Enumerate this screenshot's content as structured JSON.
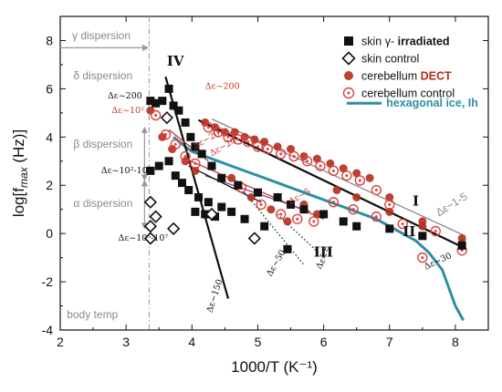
{
  "chart_data": {
    "type": "scatter",
    "xlabel": "1000/T (K⁻¹)",
    "xlim": [
      2,
      8.5
    ],
    "ylim": [
      -4,
      9
    ],
    "xticks": [
      2,
      3,
      4,
      5,
      6,
      7,
      8
    ],
    "yticks": [
      -4,
      -2,
      0,
      2,
      4,
      6,
      8
    ],
    "xtick_labels": [
      "2",
      "3",
      "4",
      "5",
      "6",
      "7",
      "8"
    ],
    "ytick_labels": [
      "-4",
      "-2",
      "0",
      "2",
      "4",
      "6",
      "8"
    ],
    "ylabel": {
      "main": "log[f",
      "sub": "max",
      "tail": " (Hz)]"
    },
    "legend_position": "top-right",
    "series": [
      {
        "name_prefix": "skin γ-",
        "name_bold": " irradiated",
        "marker": "filled-square",
        "color": "#111111",
        "points": [
          [
            3.37,
            5.5
          ],
          [
            3.45,
            5.4
          ],
          [
            3.55,
            5.5
          ],
          [
            3.65,
            6.0
          ],
          [
            3.72,
            5.3
          ],
          [
            3.8,
            5.1
          ],
          [
            3.9,
            4.6
          ],
          [
            3.98,
            4.0
          ],
          [
            4.05,
            3.6
          ],
          [
            4.15,
            3.3
          ],
          [
            4.3,
            2.8
          ],
          [
            4.45,
            2.3
          ],
          [
            4.7,
            2.0
          ],
          [
            5.0,
            1.7
          ],
          [
            5.3,
            1.5
          ],
          [
            5.5,
            1.2
          ],
          [
            5.7,
            1.0
          ],
          [
            6.0,
            0.8
          ],
          [
            6.3,
            0.5
          ],
          [
            6.5,
            0.3
          ],
          [
            7.0,
            0.2
          ],
          [
            7.5,
            -0.1
          ],
          [
            8.1,
            -0.5
          ],
          [
            3.37,
            2.6
          ],
          [
            3.5,
            2.8
          ],
          [
            3.65,
            3.0
          ],
          [
            3.75,
            2.4
          ],
          [
            3.85,
            2.1
          ],
          [
            3.95,
            1.8
          ],
          [
            4.1,
            1.5
          ],
          [
            4.25,
            1.3
          ],
          [
            4.45,
            1.1
          ],
          [
            4.6,
            0.9
          ],
          [
            4.8,
            0.6
          ],
          [
            5.1,
            0.3
          ],
          [
            5.45,
            -0.65
          ],
          [
            4.05,
            0.9
          ],
          [
            4.2,
            0.8
          ],
          [
            4.35,
            0.7
          ]
        ]
      },
      {
        "name": "skin control",
        "marker": "open-diamond",
        "color": "#111111",
        "points": [
          [
            3.37,
            1.3
          ],
          [
            3.37,
            0.3
          ],
          [
            3.37,
            -0.2
          ],
          [
            3.45,
            0.7
          ],
          [
            3.62,
            4.8
          ],
          [
            3.72,
            0.2
          ],
          [
            4.3,
            0.8
          ],
          [
            4.95,
            -0.2
          ]
        ]
      },
      {
        "name_prefix": "cerebellum",
        "name_bold": " DECT",
        "marker": "filled-circle",
        "color": "#b32d1a",
        "points": [
          [
            3.37,
            5.1
          ],
          [
            3.55,
            4.0
          ],
          [
            3.7,
            3.5
          ],
          [
            3.9,
            3.0
          ],
          [
            4.05,
            2.6
          ],
          [
            4.2,
            4.6
          ],
          [
            4.35,
            4.4
          ],
          [
            4.5,
            4.2
          ],
          [
            4.65,
            4.2
          ],
          [
            4.8,
            4.0
          ],
          [
            4.95,
            3.9
          ],
          [
            5.1,
            3.8
          ],
          [
            5.3,
            3.6
          ],
          [
            5.5,
            3.5
          ],
          [
            5.7,
            3.2
          ],
          [
            5.9,
            3.1
          ],
          [
            6.1,
            2.9
          ],
          [
            6.3,
            2.7
          ],
          [
            6.5,
            2.5
          ],
          [
            6.7,
            2.3
          ],
          [
            7.0,
            1.5
          ],
          [
            7.5,
            0.3
          ],
          [
            8.1,
            -0.4
          ],
          [
            4.6,
            2.3
          ],
          [
            4.9,
            1.5
          ],
          [
            5.2,
            1.0
          ],
          [
            5.45,
            0.5
          ],
          [
            5.7,
            1.2
          ],
          [
            5.9,
            0.8
          ],
          [
            6.2,
            1.8
          ],
          [
            6.5,
            1.5
          ],
          [
            7.0,
            0.9
          ],
          [
            7.5,
            0.5
          ],
          [
            8.1,
            -0.2
          ]
        ]
      },
      {
        "name": "cerebellum control",
        "marker": "open-circle-dot",
        "color": "#e04040",
        "points": [
          [
            3.45,
            4.9
          ],
          [
            3.6,
            4.1
          ],
          [
            3.75,
            3.7
          ],
          [
            3.9,
            3.2
          ],
          [
            4.05,
            2.9
          ],
          [
            4.25,
            4.4
          ],
          [
            4.4,
            4.2
          ],
          [
            4.55,
            4.0
          ],
          [
            4.7,
            3.9
          ],
          [
            4.85,
            3.8
          ],
          [
            5.0,
            3.6
          ],
          [
            5.15,
            3.5
          ],
          [
            5.35,
            3.3
          ],
          [
            5.55,
            3.2
          ],
          [
            5.75,
            3.0
          ],
          [
            5.95,
            2.8
          ],
          [
            6.15,
            2.6
          ],
          [
            6.35,
            2.4
          ],
          [
            6.55,
            2.2
          ],
          [
            6.8,
            1.8
          ],
          [
            7.0,
            1.2
          ],
          [
            7.5,
            -1.0
          ],
          [
            8.1,
            -0.7
          ],
          [
            4.75,
            1.9
          ],
          [
            5.05,
            1.2
          ],
          [
            5.35,
            0.8
          ],
          [
            5.6,
            0.6
          ],
          [
            5.85,
            0.5
          ],
          [
            6.15,
            1.3
          ],
          [
            6.45,
            1.0
          ],
          [
            6.8,
            0.7
          ],
          [
            7.2,
            0.4
          ],
          [
            7.7,
            0.1
          ]
        ]
      }
    ],
    "lines": [
      {
        "name": "hexagonal ice, Ih",
        "color": "#2d8fa3",
        "style": "solid",
        "points": [
          [
            3.72,
            4.0
          ],
          [
            3.9,
            3.6
          ],
          [
            4.0,
            3.4
          ],
          [
            4.2,
            3.2
          ],
          [
            4.4,
            3.0
          ],
          [
            4.6,
            2.8
          ],
          [
            4.8,
            2.6
          ],
          [
            5.0,
            2.4
          ],
          [
            5.2,
            2.2
          ],
          [
            5.4,
            2.0
          ],
          [
            5.6,
            1.8
          ],
          [
            5.8,
            1.6
          ],
          [
            6.0,
            1.4
          ],
          [
            6.2,
            1.2
          ],
          [
            6.4,
            1.0
          ],
          [
            6.6,
            0.8
          ],
          [
            6.8,
            0.6
          ],
          [
            7.0,
            0.3
          ],
          [
            7.2,
            0.0
          ],
          [
            7.4,
            -0.3
          ],
          [
            7.6,
            -0.8
          ],
          [
            7.8,
            -1.5
          ],
          [
            8.0,
            -3.0
          ],
          [
            8.12,
            -3.6
          ]
        ]
      },
      {
        "name": "fit I",
        "color": "#888888",
        "style": "solid",
        "points": [
          [
            4.3,
            4.75
          ],
          [
            8.15,
            -0.1
          ]
        ]
      },
      {
        "name": "fit II",
        "color": "#111111",
        "style": "solid-bold",
        "points": [
          [
            4.1,
            4.7
          ],
          [
            8.1,
            -0.55
          ]
        ]
      },
      {
        "name": "fit IV",
        "color": "#111111",
        "style": "solid-bold",
        "points": [
          [
            3.6,
            6.5
          ],
          [
            4.55,
            -2.7
          ]
        ]
      },
      {
        "name": "red fit upper",
        "color": "#c0392b",
        "style": "solid",
        "points": [
          [
            3.65,
            4.3
          ],
          [
            4.25,
            3.0
          ]
        ]
      },
      {
        "name": "red fit III",
        "color": "#c0392b",
        "style": "solid",
        "points": [
          [
            3.9,
            3.1
          ],
          [
            6.0,
            0.6
          ]
        ]
      },
      {
        "name": "purple fit",
        "color": "#7d4a9a",
        "style": "solid",
        "points": [
          [
            4.2,
            2.4
          ],
          [
            5.8,
            0.9
          ]
        ]
      },
      {
        "name": "skin low fit",
        "color": "#111111",
        "style": "solid",
        "points": [
          [
            3.95,
            2.8
          ],
          [
            5.05,
            1.3
          ]
        ]
      },
      {
        "name": "dotted 50",
        "color": "#333333",
        "style": "dotted",
        "points": [
          [
            4.8,
            1.7
          ],
          [
            5.7,
            -1.3
          ]
        ]
      },
      {
        "name": "dotted 5",
        "color": "#333333",
        "style": "dotted",
        "points": [
          [
            5.3,
            0.8
          ],
          [
            6.0,
            -1.0
          ]
        ]
      }
    ],
    "body_temp_line_x": 3.35,
    "annotations": [
      {
        "text": "γ dispersion",
        "x": 2.18,
        "y": 8.05,
        "style": "gray"
      },
      {
        "text": "δ dispersion",
        "x": 2.2,
        "y": 6.4,
        "style": "gray"
      },
      {
        "text": "β dispersion",
        "x": 2.2,
        "y": 3.55,
        "style": "gray"
      },
      {
        "text": "α dispersion",
        "x": 2.2,
        "y": 1.1,
        "style": "gray"
      },
      {
        "text": "body temp",
        "x": 2.1,
        "y": -3.5,
        "style": "gray"
      },
      {
        "text": "Δε~200",
        "x": 2.72,
        "y": 5.6,
        "style": "dark"
      },
      {
        "text": "Δε~10²",
        "x": 2.78,
        "y": 5.0,
        "style": "red"
      },
      {
        "text": "Δε~10²-10³",
        "x": 2.62,
        "y": 2.5,
        "style": "dark"
      },
      {
        "text": "Δε~10⁵-10⁷",
        "x": 2.88,
        "y": -0.3,
        "style": "dark"
      },
      {
        "text": "Δε~200",
        "x": 4.2,
        "y": 6.0,
        "style": "red"
      },
      {
        "text": "Δε~150",
        "x": 4.3,
        "y": -3.3,
        "style": "dark"
      },
      {
        "text": "Δε~50",
        "x": 5.2,
        "y": -1.8,
        "style": "dark"
      },
      {
        "text": "Δε~5",
        "x": 5.95,
        "y": -1.5,
        "style": "dark"
      },
      {
        "text": "Δε~30",
        "x": 7.55,
        "y": -1.5,
        "style": "dark"
      },
      {
        "text": "Δε~1-5",
        "x": 7.75,
        "y": 0.7,
        "style": "gray"
      },
      {
        "text": "Δε~5",
        "x": 5.5,
        "y": 1.2,
        "style": "red"
      },
      {
        "text": "Δε~20",
        "x": 4.3,
        "y": 3.2,
        "style": "red"
      },
      {
        "text": "Δε~20",
        "x": 4.05,
        "y": 3.5,
        "style": "red"
      },
      {
        "text": "IV",
        "x": 3.62,
        "y": 6.95,
        "style": "roman"
      },
      {
        "text": "I",
        "x": 7.35,
        "y": 1.15,
        "style": "roman"
      },
      {
        "text": "II",
        "x": 7.2,
        "y": -0.1,
        "style": "roman"
      },
      {
        "text": "III",
        "x": 5.85,
        "y": -0.95,
        "style": "roman"
      }
    ],
    "ice_label": {
      "text": "hexagonal ice, Ih",
      "x": 6.95,
      "y": 5.25,
      "color": "#2d8fa3"
    }
  }
}
